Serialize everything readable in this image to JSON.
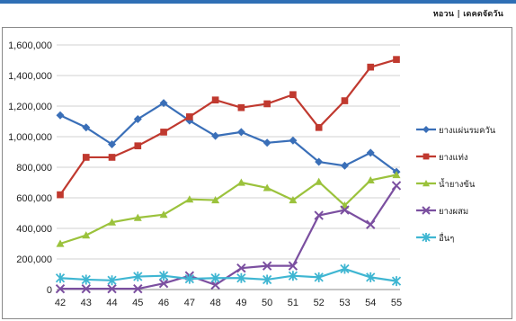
{
  "header": {
    "text": "หอวน | เดคดจัดวัน"
  },
  "chart_data": {
    "type": "line",
    "title": "",
    "xlabel": "",
    "ylabel": "",
    "x": [
      "42",
      "43",
      "44",
      "45",
      "46",
      "47",
      "48",
      "49",
      "50",
      "51",
      "52",
      "53",
      "54",
      "55"
    ],
    "ylim": [
      0,
      1600000
    ],
    "yticks": [
      0,
      200000,
      400000,
      600000,
      800000,
      1000000,
      1200000,
      1400000,
      1600000
    ],
    "ytick_labels": [
      "0",
      "200,000",
      "400,000",
      "600,000",
      "800,000",
      "1,000,000",
      "1,200,000",
      "1,400,000",
      "1,600,000"
    ],
    "grid": "horizontal",
    "legend_position": "right",
    "series": [
      {
        "name": "ยางแผ่นรมควัน",
        "color": "#3a6fb8",
        "marker": "diamond",
        "values": [
          1140000,
          1060000,
          950000,
          1115000,
          1220000,
          1105000,
          1005000,
          1030000,
          960000,
          975000,
          835000,
          810000,
          895000,
          770000
        ]
      },
      {
        "name": "ยางแท่ง",
        "color": "#c0392f",
        "marker": "square",
        "values": [
          620000,
          865000,
          865000,
          940000,
          1030000,
          1130000,
          1240000,
          1190000,
          1215000,
          1275000,
          1060000,
          1235000,
          1455000,
          1505000
        ]
      },
      {
        "name": "น้ำยางข้น",
        "color": "#9bc23c",
        "marker": "triangle",
        "values": [
          300000,
          355000,
          440000,
          470000,
          490000,
          590000,
          585000,
          700000,
          665000,
          585000,
          705000,
          550000,
          715000,
          750000
        ]
      },
      {
        "name": "ยางผสม",
        "color": "#7b4fa0",
        "marker": "x",
        "values": [
          5000,
          5000,
          5000,
          5000,
          40000,
          90000,
          30000,
          140000,
          155000,
          155000,
          485000,
          520000,
          425000,
          680000
        ]
      },
      {
        "name": "อื่นๆ",
        "color": "#3fb6d2",
        "marker": "star",
        "values": [
          75000,
          65000,
          60000,
          85000,
          90000,
          70000,
          75000,
          75000,
          65000,
          90000,
          80000,
          135000,
          80000,
          55000
        ]
      }
    ]
  }
}
